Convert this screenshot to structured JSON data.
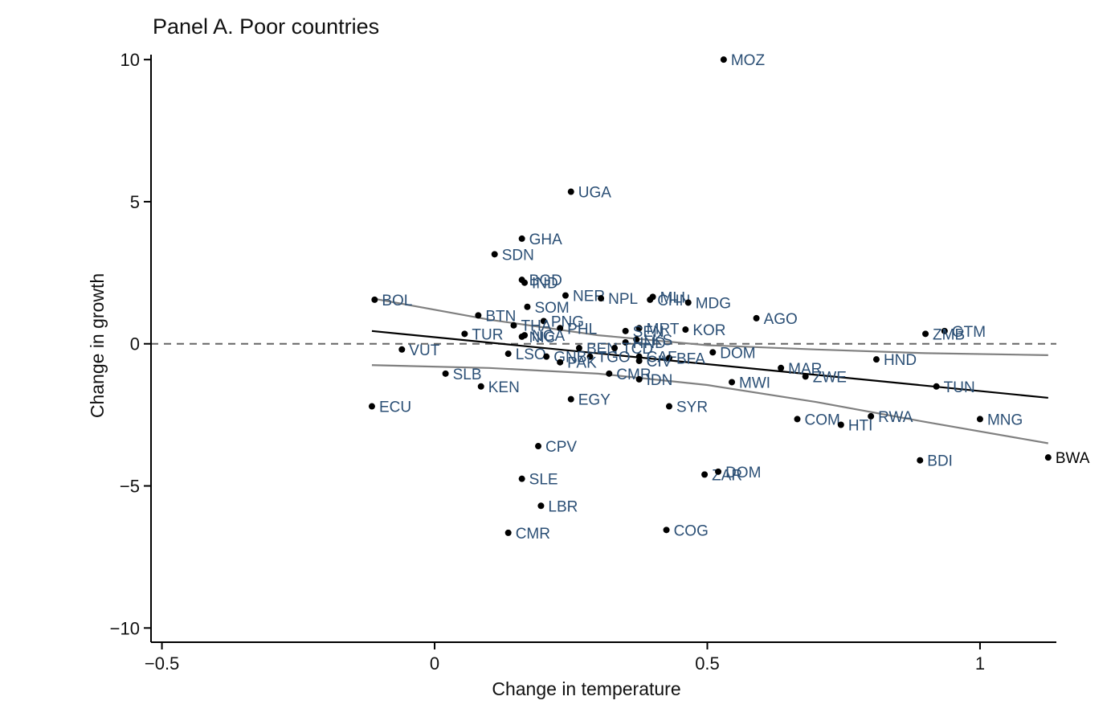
{
  "chart_data": {
    "type": "scatter",
    "title": "Panel A. Poor countries",
    "xlabel": "Change in temperature",
    "ylabel": "Change in growth",
    "xlim": [
      -0.52,
      1.14
    ],
    "ylim": [
      -10.5,
      10.4
    ],
    "xticks": [
      -0.5,
      0,
      0.5,
      1
    ],
    "xtick_labels": [
      "−0.5",
      "0",
      "0.5",
      "1"
    ],
    "yticks": [
      10,
      5,
      0,
      -5,
      -10
    ],
    "ytick_labels": [
      "10",
      "5",
      "0",
      "−5",
      "−10"
    ],
    "grid": false,
    "zero_line": true,
    "point_color": "#000000",
    "label_color": "#2b4f75",
    "highlight_label_color": "#000000",
    "fit_line_color": "#000000",
    "ci_line_color": "#808080",
    "points": [
      {
        "label": "MOZ",
        "x": 0.53,
        "y": 10.0
      },
      {
        "label": "UGA",
        "x": 0.25,
        "y": 5.35
      },
      {
        "label": "GHA",
        "x": 0.16,
        "y": 3.7
      },
      {
        "label": "SDN",
        "x": 0.11,
        "y": 3.15
      },
      {
        "label": "BGD",
        "x": 0.16,
        "y": 2.25
      },
      {
        "label": "IND",
        "x": 0.165,
        "y": 2.15
      },
      {
        "label": "NER",
        "x": 0.24,
        "y": 1.7
      },
      {
        "label": "NPL",
        "x": 0.305,
        "y": 1.6
      },
      {
        "label": "MLI",
        "x": 0.4,
        "y": 1.65
      },
      {
        "label": "CHN",
        "x": 0.395,
        "y": 1.55
      },
      {
        "label": "MDG",
        "x": 0.465,
        "y": 1.45
      },
      {
        "label": "BOL",
        "x": -0.11,
        "y": 1.55
      },
      {
        "label": "SOM",
        "x": 0.17,
        "y": 1.3
      },
      {
        "label": "BTN",
        "x": 0.08,
        "y": 1.0
      },
      {
        "label": "AGO",
        "x": 0.59,
        "y": 0.9
      },
      {
        "label": "PNG",
        "x": 0.2,
        "y": 0.8
      },
      {
        "label": "THA",
        "x": 0.145,
        "y": 0.65
      },
      {
        "label": "PHL",
        "x": 0.23,
        "y": 0.55
      },
      {
        "label": "MRT",
        "x": 0.375,
        "y": 0.55
      },
      {
        "label": "KOR",
        "x": 0.46,
        "y": 0.5
      },
      {
        "label": "SEN",
        "x": 0.35,
        "y": 0.45
      },
      {
        "label": "GTM",
        "x": 0.935,
        "y": 0.45
      },
      {
        "label": "ZMB",
        "x": 0.9,
        "y": 0.35
      },
      {
        "label": "TUR",
        "x": 0.055,
        "y": 0.35
      },
      {
        "label": "NGA",
        "x": 0.165,
        "y": 0.3
      },
      {
        "label": "NIC",
        "x": 0.16,
        "y": 0.25
      },
      {
        "label": "LKS",
        "x": 0.37,
        "y": 0.15
      },
      {
        "label": "HND",
        "x": 0.35,
        "y": 0.05
      },
      {
        "label": "BEN",
        "x": 0.265,
        "y": -0.15
      },
      {
        "label": "TCD",
        "x": 0.33,
        "y": -0.15
      },
      {
        "label": "DOM",
        "x": 0.51,
        "y": -0.3
      },
      {
        "label": "LSO",
        "x": 0.135,
        "y": -0.35
      },
      {
        "label": "GNB",
        "x": 0.205,
        "y": -0.45
      },
      {
        "label": "TGO",
        "x": 0.285,
        "y": -0.45
      },
      {
        "label": "CAF",
        "x": 0.375,
        "y": -0.45
      },
      {
        "label": "BFA",
        "x": 0.43,
        "y": -0.5
      },
      {
        "label": "HND",
        "x": 0.81,
        "y": -0.55
      },
      {
        "label": "CIV",
        "x": 0.375,
        "y": -0.6
      },
      {
        "label": "PAK",
        "x": 0.23,
        "y": -0.65
      },
      {
        "label": "VUT",
        "x": -0.06,
        "y": -0.2
      },
      {
        "label": "MAR",
        "x": 0.635,
        "y": -0.85
      },
      {
        "label": "SLB",
        "x": 0.02,
        "y": -1.05
      },
      {
        "label": "CMR",
        "x": 0.32,
        "y": -1.05
      },
      {
        "label": "ZWE",
        "x": 0.68,
        "y": -1.15
      },
      {
        "label": "IDN",
        "x": 0.375,
        "y": -1.25
      },
      {
        "label": "MWI",
        "x": 0.545,
        "y": -1.35
      },
      {
        "label": "KEN",
        "x": 0.085,
        "y": -1.5
      },
      {
        "label": "TUN",
        "x": 0.92,
        "y": -1.5
      },
      {
        "label": "EGY",
        "x": 0.25,
        "y": -1.95
      },
      {
        "label": "ECU",
        "x": -0.115,
        "y": -2.2
      },
      {
        "label": "SYR",
        "x": 0.43,
        "y": -2.2
      },
      {
        "label": "COM",
        "x": 0.665,
        "y": -2.65
      },
      {
        "label": "RWA",
        "x": 0.8,
        "y": -2.55
      },
      {
        "label": "MNG",
        "x": 1.0,
        "y": -2.65
      },
      {
        "label": "HTI",
        "x": 0.745,
        "y": -2.85
      },
      {
        "label": "CPV",
        "x": 0.19,
        "y": -3.6
      },
      {
        "label": "BDI",
        "x": 0.89,
        "y": -4.1
      },
      {
        "label": "BWA",
        "x": 1.125,
        "y": -4.0,
        "highlight": true
      },
      {
        "label": "ZAR",
        "x": 0.495,
        "y": -4.6
      },
      {
        "label": "DOM",
        "x": 0.52,
        "y": -4.5
      },
      {
        "label": "SLE",
        "x": 0.16,
        "y": -4.75
      },
      {
        "label": "LBR",
        "x": 0.195,
        "y": -5.7
      },
      {
        "label": "CMR",
        "x": 0.135,
        "y": -6.65
      },
      {
        "label": "COG",
        "x": 0.425,
        "y": -6.55
      }
    ],
    "fit_line": {
      "x": [
        -0.115,
        1.125
      ],
      "y": [
        0.45,
        -1.9
      ]
    },
    "ci_upper": {
      "x": [
        -0.115,
        0.1,
        0.3,
        0.5,
        0.7,
        0.9,
        1.125
      ],
      "y": [
        1.6,
        0.85,
        0.3,
        -0.05,
        -0.2,
        -0.33,
        -0.4
      ]
    },
    "ci_lower": {
      "x": [
        -0.115,
        0.1,
        0.3,
        0.5,
        0.7,
        0.9,
        1.125
      ],
      "y": [
        -0.75,
        -0.85,
        -1.05,
        -1.45,
        -2.05,
        -2.75,
        -3.5
      ]
    }
  }
}
